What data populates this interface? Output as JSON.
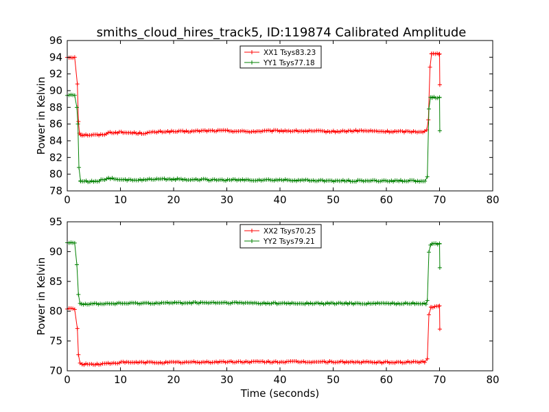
{
  "figure": {
    "title": "smiths_cloud_hires_track5, ID:119874 Calibrated Amplitude"
  },
  "chart_data": [
    {
      "type": "line",
      "title": "smiths_cloud_hires_track5, ID:119874 Calibrated Amplitude",
      "xlabel": "",
      "ylabel": "Power in Kelvin",
      "xlim": [
        0,
        80
      ],
      "ylim": [
        78,
        96
      ],
      "xticks": [
        0,
        10,
        20,
        30,
        40,
        50,
        60,
        70,
        80
      ],
      "yticks": [
        78,
        80,
        82,
        84,
        86,
        88,
        90,
        92,
        94,
        96
      ],
      "grid": false,
      "legend_position": "top-center",
      "x_sampling": {
        "start": 0,
        "end": 70,
        "step": 0.35
      },
      "series": [
        {
          "name": "XX1 Tsys83.23",
          "color": "#ff0000",
          "marker": "+",
          "segments": [
            {
              "x": [
                0,
                1.7
              ],
              "y": [
                94.0,
                94.0
              ]
            },
            {
              "x": [
                1.9,
                2.1,
                2.3,
                2.5,
                2.8
              ],
              "y": [
                90.8,
                86.3,
                84.9,
                84.7,
                84.7
              ]
            },
            {
              "x": [
                2.8,
                5.0,
                6.5,
                8.0,
                10.0,
                14.0,
                18.0,
                22.0,
                26.0,
                30.0,
                34.0,
                40.0,
                50.0,
                55.0,
                60.0,
                65.0,
                67.5
              ],
              "y": [
                84.7,
                84.7,
                84.7,
                85.0,
                85.0,
                84.9,
                85.1,
                85.1,
                85.2,
                85.2,
                85.1,
                85.2,
                85.1,
                85.2,
                85.1,
                85.1,
                85.1
              ]
            },
            {
              "x": [
                67.6,
                67.9,
                68.2,
                68.5
              ],
              "y": [
                85.3,
                86.5,
                92.8,
                94.4
              ]
            },
            {
              "x": [
                68.5,
                70.0
              ],
              "y": [
                94.4,
                94.4
              ]
            },
            {
              "x": [
                70.0,
                70.05
              ],
              "y": [
                94.4,
                90.7
              ]
            }
          ]
        },
        {
          "name": "YY1 Tsys77.18",
          "color": "#008000",
          "marker": "+",
          "segments": [
            {
              "x": [
                0,
                1.7
              ],
              "y": [
                89.5,
                89.4
              ]
            },
            {
              "x": [
                1.8,
                2.0,
                2.2,
                2.5
              ],
              "y": [
                88.0,
                86.0,
                80.8,
                79.2
              ]
            },
            {
              "x": [
                2.5,
                5.0,
                6.5,
                8.0,
                10.0,
                20.0,
                30.0,
                40.0,
                50.0,
                60.0,
                67.5
              ],
              "y": [
                79.2,
                79.1,
                79.3,
                79.5,
                79.3,
                79.4,
                79.3,
                79.3,
                79.2,
                79.2,
                79.2
              ]
            },
            {
              "x": [
                67.7,
                68.0,
                68.3,
                68.6
              ],
              "y": [
                79.7,
                87.8,
                89.2,
                89.2
              ]
            },
            {
              "x": [
                68.6,
                70.0
              ],
              "y": [
                89.2,
                89.2
              ]
            },
            {
              "x": [
                70.0,
                70.05
              ],
              "y": [
                89.2,
                85.2
              ]
            }
          ]
        }
      ]
    },
    {
      "type": "line",
      "title": "",
      "xlabel": "Time (seconds)",
      "ylabel": "Power in Kelvin",
      "xlim": [
        0,
        80
      ],
      "ylim": [
        70,
        95
      ],
      "xticks": [
        0,
        10,
        20,
        30,
        40,
        50,
        60,
        70,
        80
      ],
      "yticks": [
        70,
        75,
        80,
        85,
        90,
        95
      ],
      "grid": false,
      "legend_position": "top-center",
      "x_sampling": {
        "start": 0,
        "end": 70,
        "step": 0.35
      },
      "series": [
        {
          "name": "XX2 Tsys70.25",
          "color": "#ff0000",
          "marker": "+",
          "segments": [
            {
              "x": [
                0,
                1.7
              ],
              "y": [
                80.4,
                80.4
              ]
            },
            {
              "x": [
                1.9,
                2.1,
                2.4,
                2.8
              ],
              "y": [
                77.1,
                72.7,
                71.3,
                71.1
              ]
            },
            {
              "x": [
                2.8,
                6.0,
                10.0,
                20.0,
                30.0,
                40.0,
                50.0,
                60.0,
                67.5
              ],
              "y": [
                71.1,
                71.1,
                71.4,
                71.4,
                71.5,
                71.5,
                71.5,
                71.4,
                71.5
              ]
            },
            {
              "x": [
                67.7,
                68.0,
                68.4
              ],
              "y": [
                72.0,
                79.4,
                80.7
              ]
            },
            {
              "x": [
                68.4,
                70.0
              ],
              "y": [
                80.7,
                80.9
              ]
            },
            {
              "x": [
                70.0,
                70.05
              ],
              "y": [
                80.9,
                77.0
              ]
            }
          ]
        },
        {
          "name": "YY2 Tsys79.21",
          "color": "#008000",
          "marker": "+",
          "segments": [
            {
              "x": [
                0,
                1.7
              ],
              "y": [
                91.6,
                91.5
              ]
            },
            {
              "x": [
                1.8,
                2.1,
                2.4,
                2.7
              ],
              "y": [
                87.8,
                82.8,
                81.3,
                81.2
              ]
            },
            {
              "x": [
                2.7,
                10.0,
                20.0,
                30.0,
                40.0,
                50.0,
                60.0,
                67.5
              ],
              "y": [
                81.2,
                81.3,
                81.4,
                81.4,
                81.3,
                81.3,
                81.3,
                81.3
              ]
            },
            {
              "x": [
                67.7,
                68.0,
                68.3,
                68.6
              ],
              "y": [
                81.8,
                89.9,
                91.1,
                91.3
              ]
            },
            {
              "x": [
                68.6,
                70.0
              ],
              "y": [
                91.3,
                91.3
              ]
            },
            {
              "x": [
                70.0,
                70.05
              ],
              "y": [
                91.3,
                87.3
              ]
            }
          ]
        }
      ]
    }
  ]
}
